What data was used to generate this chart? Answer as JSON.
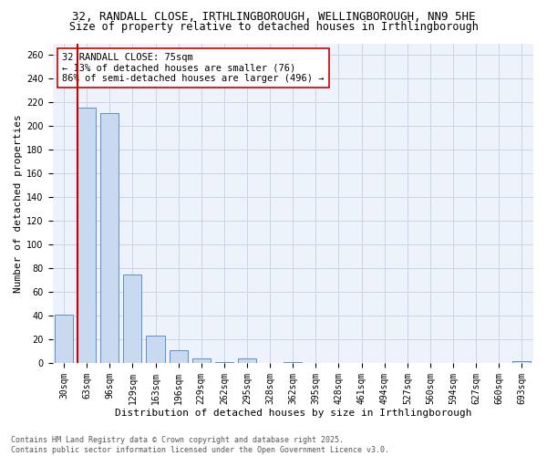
{
  "title_line1": "32, RANDALL CLOSE, IRTHLINGBOROUGH, WELLINGBOROUGH, NN9 5HE",
  "title_line2": "Size of property relative to detached houses in Irthlingborough",
  "xlabel": "Distribution of detached houses by size in Irthlingborough",
  "ylabel": "Number of detached properties",
  "categories": [
    "30sqm",
    "63sqm",
    "96sqm",
    "129sqm",
    "163sqm",
    "196sqm",
    "229sqm",
    "262sqm",
    "295sqm",
    "328sqm",
    "362sqm",
    "395sqm",
    "428sqm",
    "461sqm",
    "494sqm",
    "527sqm",
    "560sqm",
    "594sqm",
    "627sqm",
    "660sqm",
    "693sqm"
  ],
  "values": [
    41,
    216,
    211,
    75,
    23,
    11,
    4,
    1,
    4,
    0,
    1,
    0,
    0,
    0,
    0,
    0,
    0,
    0,
    0,
    0,
    2
  ],
  "bar_color": "#c9d9f0",
  "bar_edge_color": "#5b8fcc",
  "vline_color": "#cc0000",
  "vline_x_index": 1,
  "annotation_text": "32 RANDALL CLOSE: 75sqm\n← 13% of detached houses are smaller (76)\n86% of semi-detached houses are larger (496) →",
  "annotation_box_color": "#ffffff",
  "annotation_box_edge": "#cc0000",
  "ylim": [
    0,
    270
  ],
  "yticks": [
    0,
    20,
    40,
    60,
    80,
    100,
    120,
    140,
    160,
    180,
    200,
    220,
    240,
    260
  ],
  "footer_line1": "Contains HM Land Registry data © Crown copyright and database right 2025.",
  "footer_line2": "Contains public sector information licensed under the Open Government Licence v3.0.",
  "bg_color": "#eef2fb",
  "grid_color": "#c8d4e8",
  "title_fontsize": 9,
  "subtitle_fontsize": 8.5,
  "axis_label_fontsize": 8,
  "tick_fontsize": 7,
  "annotation_fontsize": 7.5,
  "footer_fontsize": 6
}
